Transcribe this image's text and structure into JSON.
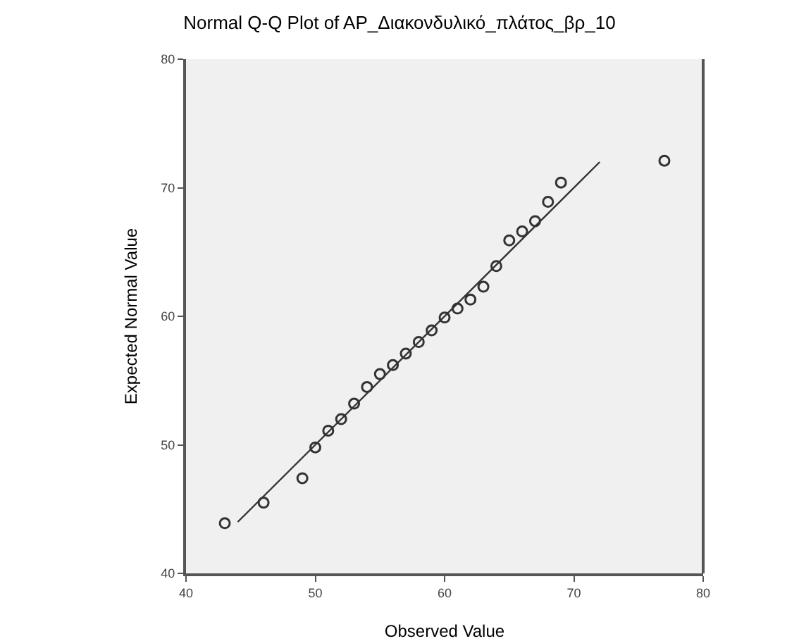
{
  "chart_data": {
    "type": "scatter",
    "title": "Normal Q-Q Plot of AP_Διακονδυλικό_πλάτος_βρ_10",
    "xlabel": "Observed Value",
    "ylabel": "Expected Normal Value",
    "xlim": [
      40,
      80
    ],
    "xticks": [
      40,
      50,
      60,
      70,
      80
    ],
    "ylim": [
      40,
      80
    ],
    "yticks": [
      40,
      50,
      60,
      70,
      80
    ],
    "grid": false,
    "series": [
      {
        "marker": "circle",
        "color": "#333333",
        "x": [
          43,
          46,
          49,
          50,
          51,
          52,
          53,
          54,
          55,
          56,
          57,
          58,
          59,
          60,
          61,
          62,
          63,
          64,
          65,
          66,
          67,
          68,
          69,
          77
        ],
        "values": [
          43.9,
          45.5,
          47.4,
          49.8,
          51.1,
          52,
          53.2,
          54.5,
          55.5,
          56.2,
          57.1,
          58,
          58.9,
          59.9,
          60.6,
          61.3,
          62.3,
          63.9,
          65.9,
          66.6,
          67.4,
          68.9,
          70.4,
          72.1
        ]
      },
      {
        "type": "line",
        "color": "#333333",
        "x": [
          44,
          72
        ],
        "values": [
          44,
          72
        ],
        "line_style": "solid"
      }
    ]
  }
}
